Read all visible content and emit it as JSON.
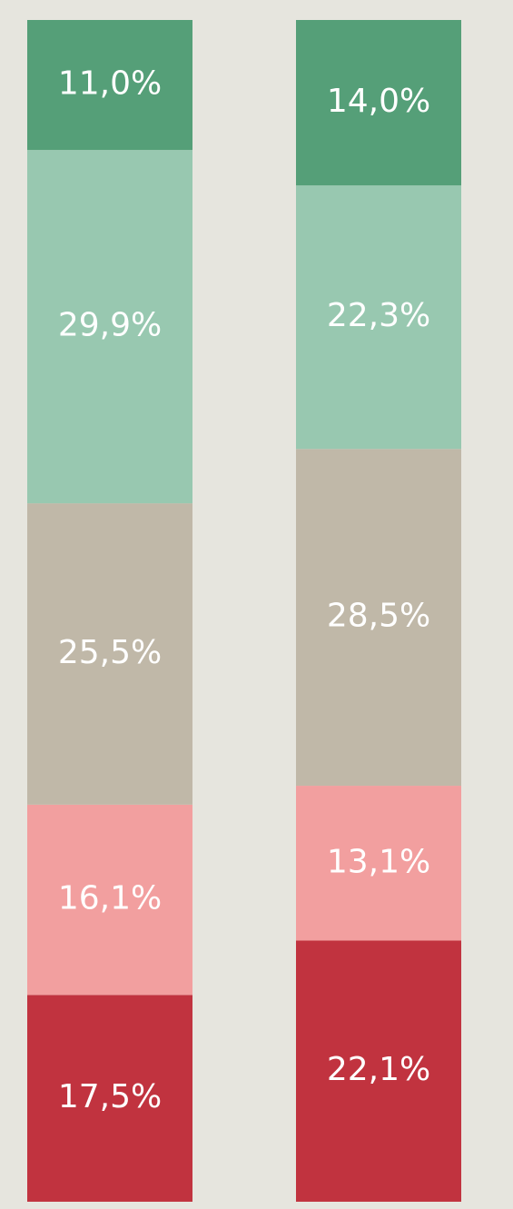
{
  "chart_data": {
    "type": "stacked_bar",
    "categories": [
      null,
      null
    ],
    "ylim": [
      0,
      100
    ],
    "series": [
      {
        "color": "#c1333f",
        "values": [
          17.5,
          22.1
        ],
        "value_labels": [
          "17,5%",
          "22,1%"
        ]
      },
      {
        "color": "#f29f9f",
        "values": [
          16.1,
          13.1
        ],
        "value_labels": [
          "16,1%",
          "13,1%"
        ]
      },
      {
        "color": "#c0b8a8",
        "values": [
          25.5,
          28.5
        ],
        "value_labels": [
          "25,5%",
          "28,5%"
        ]
      },
      {
        "color": "#98c8b0",
        "values": [
          29.9,
          22.3
        ],
        "value_labels": [
          "29,9%",
          "22,3%"
        ]
      },
      {
        "color": "#559f78",
        "values": [
          11.0,
          14.0
        ],
        "value_labels": [
          "11,0%",
          "14,0%"
        ]
      }
    ]
  }
}
